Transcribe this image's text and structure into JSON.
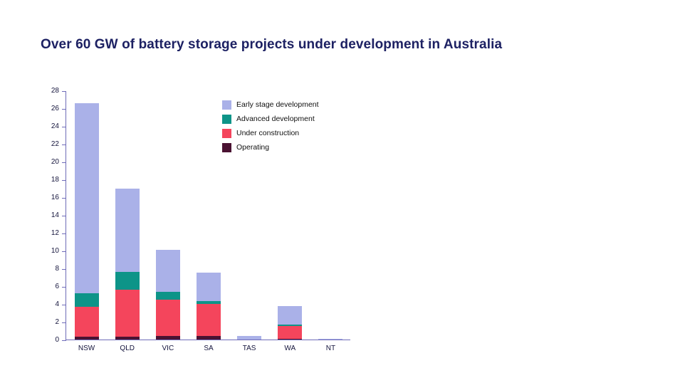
{
  "chart_data": {
    "type": "bar",
    "stacked": true,
    "title": "Over 60 GW of battery storage projects under development in Australia",
    "xlabel": "",
    "ylabel": "",
    "ylim": [
      0,
      28
    ],
    "ytick_step": 2,
    "grid": false,
    "legend_position": "top-inside",
    "categories": [
      "NSW",
      "QLD",
      "VIC",
      "SA",
      "TAS",
      "WA",
      "NT"
    ],
    "series": [
      {
        "name": "Operating",
        "color": "#4a1232",
        "values": [
          0.3,
          0.3,
          0.4,
          0.4,
          0.0,
          0.1,
          0.0
        ]
      },
      {
        "name": "Under construction",
        "color": "#f4455c",
        "values": [
          3.4,
          5.3,
          4.1,
          3.6,
          0.0,
          1.4,
          0.0
        ]
      },
      {
        "name": "Advanced development",
        "color": "#0d9488",
        "values": [
          1.5,
          2.0,
          0.9,
          0.3,
          0.0,
          0.2,
          0.0
        ]
      },
      {
        "name": "Early stage development",
        "color": "#aab1e8",
        "values": [
          21.4,
          9.4,
          4.7,
          3.2,
          0.4,
          2.1,
          0.1
        ]
      }
    ],
    "totals": [
      26.6,
      17.0,
      10.1,
      7.5,
      0.4,
      3.8,
      0.1
    ],
    "axis_color": "#6e6bb8"
  }
}
